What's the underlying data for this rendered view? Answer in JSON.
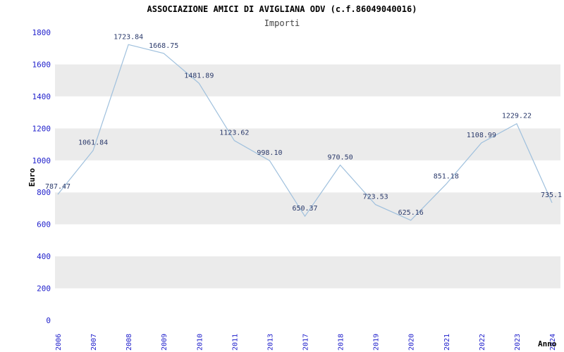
{
  "header": {
    "title": "ASSOCIAZIONE AMICI DI AVIGLIANA ODV (c.f.86049040016)",
    "subtitle": "Importi"
  },
  "chart_data": {
    "type": "line",
    "title": "ASSOCIAZIONE AMICI DI AVIGLIANA ODV (c.f.86049040016)",
    "subtitle": "Importi",
    "xlabel": "Anno",
    "ylabel": "Euro",
    "categories": [
      "2006",
      "2007",
      "2008",
      "2009",
      "2010",
      "2011",
      "2013",
      "2017",
      "2018",
      "2019",
      "2020",
      "2021",
      "2022",
      "2023",
      "2024"
    ],
    "values": [
      787.47,
      1061.84,
      1723.84,
      1668.75,
      1481.89,
      1123.62,
      998.1,
      650.37,
      970.5,
      723.53,
      625.16,
      851.18,
      1108.99,
      1229.22,
      735.1
    ],
    "value_labels": [
      "787.47",
      "1061.84",
      "1723.84",
      "1668.75",
      "1481.89",
      "1123.62",
      "998.10",
      "650.37",
      "970.50",
      "723.53",
      "625.16",
      "851.18",
      "1108.99",
      "1229.22",
      "735.1"
    ],
    "ylim": [
      0,
      1800
    ],
    "ytick_step": 200,
    "grid": "alternating-horizontal-bands",
    "legend": "none",
    "colors": {
      "line": "#9fc0dd",
      "ticks": "#2222cc",
      "point_labels": "#2b3a6b",
      "band": "#ebebeb",
      "background": "#ffffff",
      "axis_title": "#000000"
    }
  }
}
